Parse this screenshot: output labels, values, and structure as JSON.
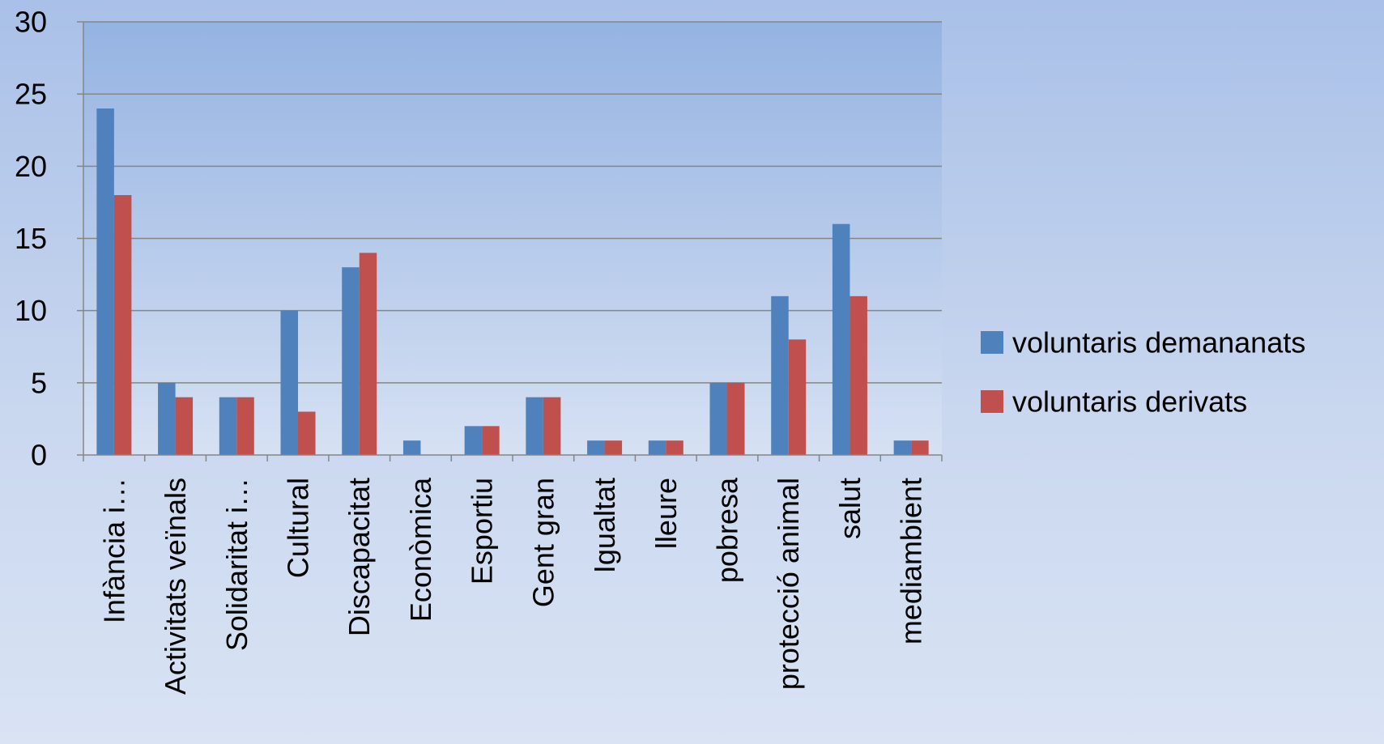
{
  "chart_data": {
    "type": "bar",
    "title": "",
    "xlabel": "",
    "ylabel": "",
    "ylim": [
      0,
      30
    ],
    "yticks": [
      0,
      5,
      10,
      15,
      20,
      25,
      30
    ],
    "grid": true,
    "legend_position": "right",
    "categories": [
      "Infància i…",
      "Activitats veïnals",
      "Solidaritat i…",
      "Cultural",
      "Discapacitat",
      "Econòmica",
      "Esportiu",
      "Gent gran",
      "Igualtat",
      "lleure",
      "pobresa",
      "protecció animal",
      "salut",
      "mediambient"
    ],
    "series": [
      {
        "name": "voluntaris demananats",
        "color": "#4f81bd",
        "values": [
          24,
          5,
          4,
          10,
          13,
          1,
          2,
          4,
          1,
          1,
          5,
          11,
          16,
          1
        ]
      },
      {
        "name": "voluntaris derivats",
        "color": "#c0504d",
        "values": [
          18,
          4,
          4,
          3,
          14,
          0,
          2,
          4,
          1,
          1,
          5,
          8,
          11,
          1
        ]
      }
    ]
  }
}
